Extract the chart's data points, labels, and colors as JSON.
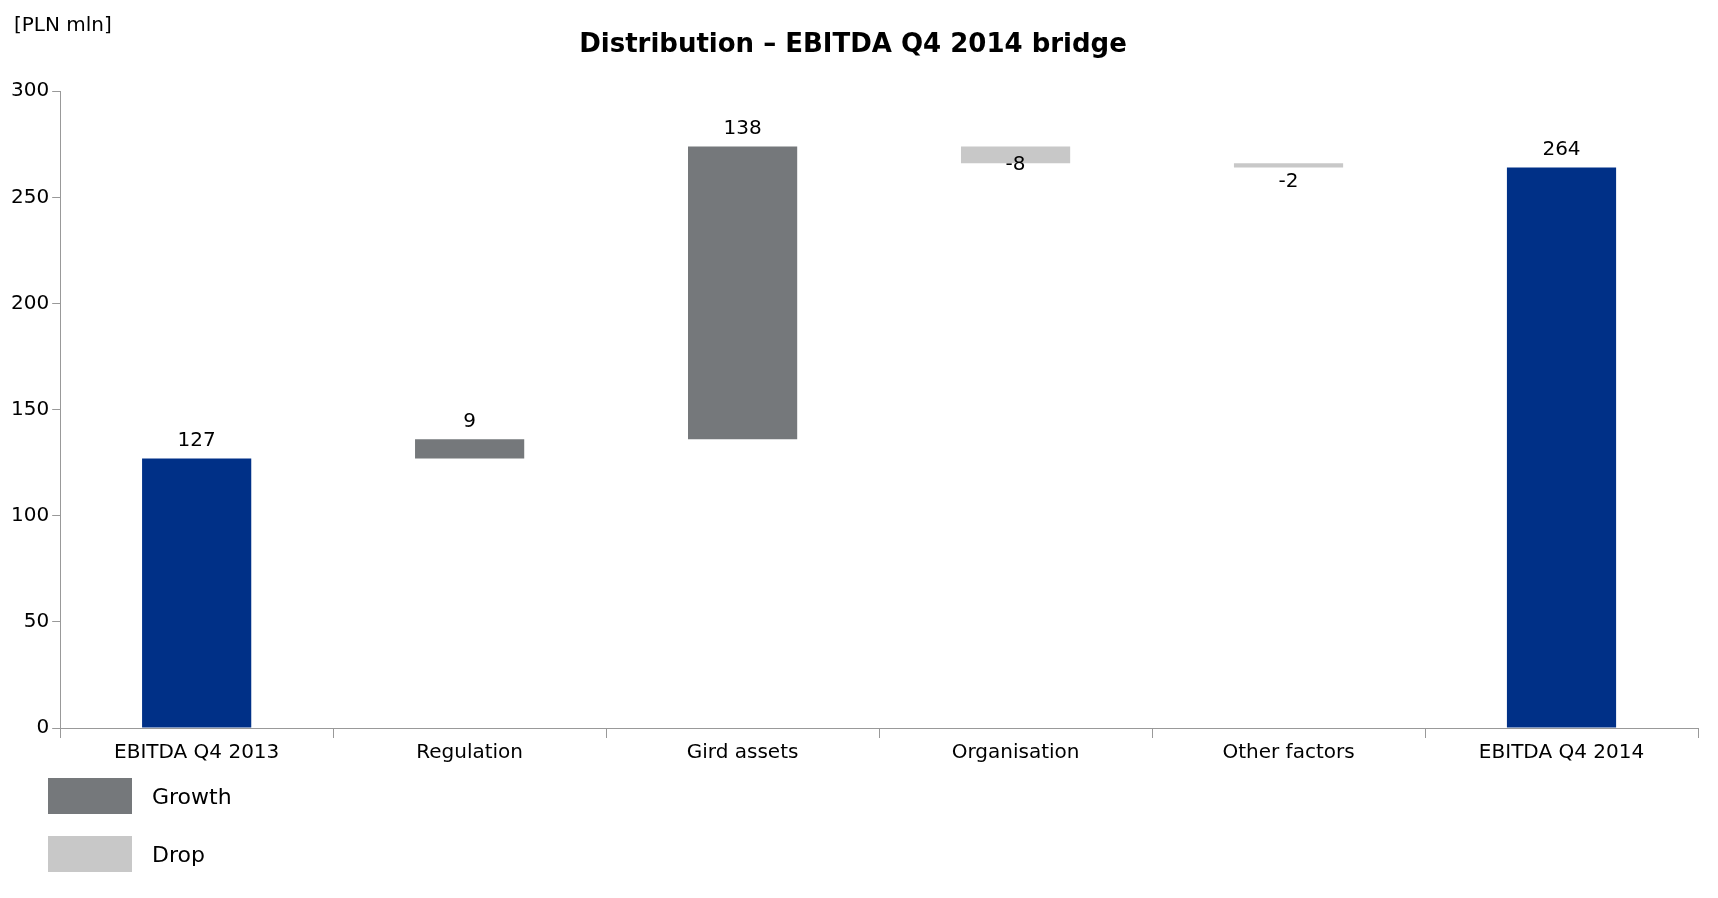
{
  "chart_data": {
    "type": "bar",
    "title": "Distribution – EBITDA Q4 2014 bridge",
    "ylabel": "[PLN mln]",
    "categories": [
      "EBITDA Q4 2013",
      "Regulation",
      "Gird assets",
      "Organisation",
      "Other factors",
      "EBITDA Q4 2014"
    ],
    "series": [
      {
        "color": "#003087",
        "values": [
          127,
          null,
          null,
          null,
          null,
          264
        ],
        "base": [
          0,
          null,
          null,
          null,
          null,
          0
        ]
      },
      {
        "name": "Growth",
        "color": "#75787b",
        "values": [
          null,
          9,
          138,
          null,
          null,
          null
        ],
        "base": [
          null,
          127,
          136,
          null,
          null,
          null
        ]
      },
      {
        "name": "Drop",
        "color": "#c8c8c8",
        "values": [
          null,
          null,
          null,
          -8,
          -2,
          null
        ],
        "base": [
          null,
          null,
          null,
          274,
          266,
          null
        ]
      }
    ],
    "ylim": [
      0,
      300
    ],
    "yticks": [
      0,
      50,
      100,
      150,
      200,
      250,
      300
    ],
    "grid": false,
    "legend": "bottom left",
    "data_labels": true
  }
}
